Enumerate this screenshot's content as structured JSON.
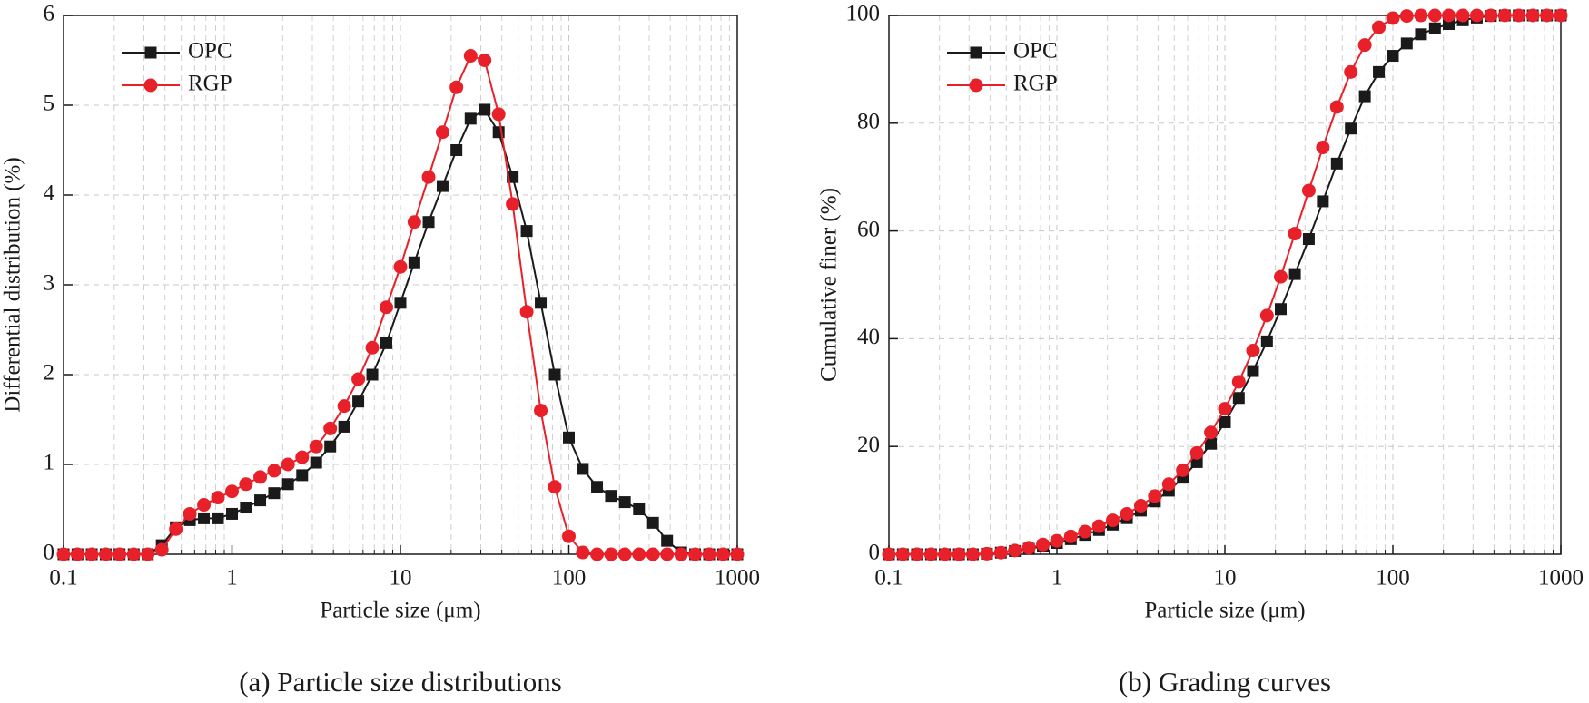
{
  "chart_data": [
    {
      "type": "line",
      "caption": "(a) Particle size distributions",
      "xlabel": "Particle size (μm)",
      "ylabel": "Differential distribution (%)",
      "xscale": "log",
      "xlim": [
        0.1,
        1000
      ],
      "xticks": [
        0.1,
        1,
        10,
        100,
        1000
      ],
      "ylim": [
        0,
        6
      ],
      "yticks": [
        0,
        1,
        2,
        3,
        4,
        5,
        6
      ],
      "grid": true,
      "legend": "upper left",
      "x": [
        0.1,
        0.121,
        0.147,
        0.178,
        0.215,
        0.261,
        0.316,
        0.383,
        0.464,
        0.562,
        0.681,
        0.825,
        1,
        1.21,
        1.47,
        1.78,
        2.15,
        2.61,
        3.16,
        3.83,
        4.64,
        5.62,
        6.81,
        8.25,
        10,
        12.1,
        14.7,
        17.8,
        21.5,
        26.1,
        31.6,
        38.3,
        46.4,
        56.2,
        68.1,
        82.5,
        100,
        121,
        147,
        178,
        215,
        261,
        316,
        383,
        464,
        562,
        681,
        825,
        1000
      ],
      "series": [
        {
          "name": "OPC",
          "color": "#1a1a1a",
          "marker": "square",
          "values": [
            0,
            0,
            0,
            0,
            0,
            0,
            0,
            0.1,
            0.3,
            0.38,
            0.4,
            0.4,
            0.45,
            0.52,
            0.6,
            0.68,
            0.78,
            0.88,
            1.02,
            1.2,
            1.42,
            1.7,
            2.0,
            2.35,
            2.8,
            3.25,
            3.7,
            4.1,
            4.5,
            4.85,
            4.95,
            4.7,
            4.2,
            3.6,
            2.8,
            2.0,
            1.3,
            0.95,
            0.75,
            0.65,
            0.58,
            0.5,
            0.35,
            0.15,
            0.02,
            0,
            0,
            0,
            0
          ]
        },
        {
          "name": "RGP",
          "color": "#e8202a",
          "marker": "circle",
          "values": [
            0,
            0,
            0,
            0,
            0,
            0,
            0,
            0.05,
            0.28,
            0.45,
            0.55,
            0.63,
            0.7,
            0.78,
            0.86,
            0.93,
            1.0,
            1.08,
            1.2,
            1.4,
            1.65,
            1.95,
            2.3,
            2.75,
            3.2,
            3.7,
            4.2,
            4.7,
            5.2,
            5.55,
            5.5,
            4.9,
            3.9,
            2.7,
            1.6,
            0.75,
            0.2,
            0.02,
            0,
            0,
            0,
            0,
            0,
            0,
            0,
            0,
            0,
            0,
            0
          ]
        }
      ]
    },
    {
      "type": "line",
      "caption": "(b) Grading curves",
      "xlabel": "Particle size (μm)",
      "ylabel": "Cumulative finer (%)",
      "xscale": "log",
      "xlim": [
        0.1,
        1000
      ],
      "xticks": [
        0.1,
        1,
        10,
        100,
        1000
      ],
      "ylim": [
        0,
        100
      ],
      "yticks": [
        0,
        20,
        40,
        60,
        80,
        100
      ],
      "grid": true,
      "legend": "upper left",
      "x": [
        0.1,
        0.121,
        0.147,
        0.178,
        0.215,
        0.261,
        0.316,
        0.383,
        0.464,
        0.562,
        0.681,
        0.825,
        1,
        1.21,
        1.47,
        1.78,
        2.15,
        2.61,
        3.16,
        3.83,
        4.64,
        5.62,
        6.81,
        8.25,
        10,
        12.1,
        14.7,
        17.8,
        21.5,
        26.1,
        31.6,
        38.3,
        46.4,
        56.2,
        68.1,
        82.5,
        100,
        121,
        147,
        178,
        215,
        261,
        316,
        383,
        464,
        562,
        681,
        825,
        1000
      ],
      "series": [
        {
          "name": "OPC",
          "color": "#1a1a1a",
          "marker": "square",
          "values": [
            0,
            0,
            0,
            0,
            0,
            0,
            0,
            0.1,
            0.3,
            0.6,
            1.0,
            1.5,
            2.1,
            2.8,
            3.6,
            4.5,
            5.5,
            6.7,
            8.1,
            9.8,
            11.8,
            14.2,
            17.1,
            20.5,
            24.5,
            29,
            34,
            39.5,
            45.5,
            52,
            58.5,
            65.5,
            72.5,
            79,
            85,
            89.5,
            92.5,
            94.8,
            96.5,
            97.6,
            98.4,
            99.1,
            99.6,
            99.9,
            100,
            100,
            100,
            100,
            100
          ]
        },
        {
          "name": "RGP",
          "color": "#e8202a",
          "marker": "circle",
          "values": [
            0,
            0,
            0,
            0,
            0,
            0,
            0,
            0.1,
            0.3,
            0.7,
            1.2,
            1.8,
            2.5,
            3.3,
            4.2,
            5.2,
            6.3,
            7.5,
            9.0,
            10.8,
            13,
            15.6,
            18.8,
            22.6,
            27,
            32,
            37.8,
            44.3,
            51.5,
            59.5,
            67.5,
            75.5,
            83,
            89.5,
            94.5,
            97.8,
            99.5,
            99.9,
            100,
            100,
            100,
            100,
            100,
            100,
            100,
            100,
            100,
            100,
            100
          ]
        }
      ]
    }
  ]
}
